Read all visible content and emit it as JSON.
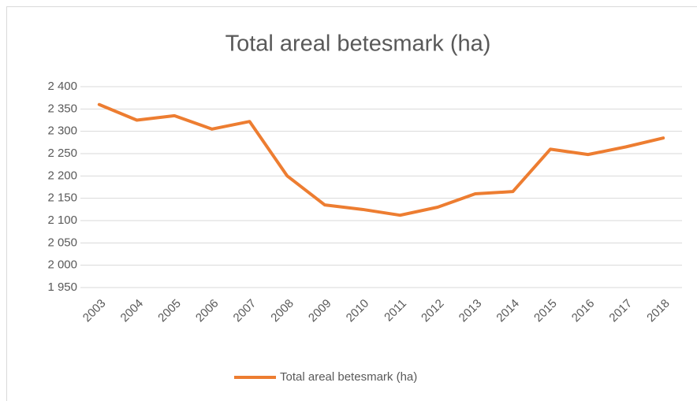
{
  "chart_data": {
    "type": "line",
    "title": "Total areal betesmark (ha)",
    "categories": [
      "2003",
      "2004",
      "2005",
      "2006",
      "2007",
      "2008",
      "2009",
      "2010",
      "2011",
      "2012",
      "2013",
      "2014",
      "2015",
      "2016",
      "2017",
      "2018"
    ],
    "series": [
      {
        "name": "Total areal betesmark (ha)",
        "color": "#ed7d31",
        "values": [
          2360,
          2325,
          2335,
          2305,
          2322,
          2200,
          2135,
          2125,
          2112,
          2130,
          2160,
          2165,
          2260,
          2248,
          2265,
          2285
        ]
      }
    ],
    "ylim": [
      1950,
      2400
    ],
    "yticks": [
      {
        "value": 1950,
        "label": "1 950"
      },
      {
        "value": 2000,
        "label": "2 000"
      },
      {
        "value": 2050,
        "label": "2 050"
      },
      {
        "value": 2100,
        "label": "2 100"
      },
      {
        "value": 2150,
        "label": "2 150"
      },
      {
        "value": 2200,
        "label": "2 200"
      },
      {
        "value": 2250,
        "label": "2 250"
      },
      {
        "value": 2300,
        "label": "2 300"
      },
      {
        "value": 2350,
        "label": "2 350"
      },
      {
        "value": 2400,
        "label": "2 400"
      }
    ],
    "grid": true,
    "legend": "bottom"
  }
}
